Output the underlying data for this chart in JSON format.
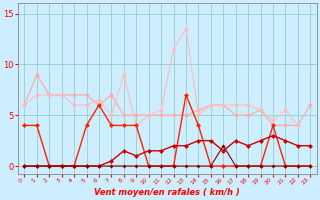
{
  "xlabel": "Vent moyen/en rafales ( km/h )",
  "background_color": "#cceeff",
  "grid_color": "#99cccc",
  "x_ticks": [
    0,
    1,
    2,
    3,
    4,
    5,
    6,
    7,
    8,
    9,
    10,
    11,
    12,
    13,
    14,
    15,
    16,
    17,
    18,
    19,
    20,
    21,
    22,
    23
  ],
  "y_ticks": [
    0,
    5,
    10,
    15
  ],
  "ylim": [
    -0.8,
    16.0
  ],
  "xlim": [
    -0.5,
    23.5
  ],
  "series": [
    {
      "x": [
        0,
        1,
        2,
        3,
        4,
        5,
        6,
        7,
        8,
        9,
        10,
        11,
        12,
        13,
        14,
        15,
        16,
        17,
        18,
        19,
        20,
        21,
        22,
        23
      ],
      "y": [
        6.0,
        9.0,
        7.0,
        7.0,
        7.0,
        7.0,
        6.0,
        7.0,
        5.0,
        5.0,
        5.0,
        5.0,
        5.0,
        5.0,
        5.5,
        6.0,
        6.0,
        5.0,
        5.0,
        5.5,
        4.0,
        4.0,
        4.0,
        6.0
      ],
      "color": "#ffaaaa",
      "linewidth": 0.9,
      "markersize": 2.5
    },
    {
      "x": [
        0,
        1,
        2,
        3,
        4,
        5,
        6,
        7,
        8,
        9,
        10,
        11,
        12,
        13,
        14,
        15,
        16,
        17,
        18,
        19,
        20,
        21,
        22,
        23
      ],
      "y": [
        6.0,
        7.0,
        7.0,
        7.0,
        6.0,
        6.0,
        6.5,
        5.0,
        9.0,
        4.0,
        5.0,
        5.5,
        11.5,
        13.5,
        5.0,
        6.0,
        6.0,
        6.0,
        6.0,
        5.5,
        4.5,
        5.5,
        4.0,
        null
      ],
      "color": "#ffbbbb",
      "linewidth": 0.8,
      "markersize": 2.5
    },
    {
      "x": [
        0,
        1,
        2,
        3,
        4,
        5,
        6,
        7,
        8,
        9,
        10,
        11,
        12,
        13,
        14,
        15,
        16,
        17,
        18,
        19,
        20,
        21,
        22,
        23
      ],
      "y": [
        4.0,
        4.0,
        0.0,
        0.0,
        0.0,
        4.0,
        6.0,
        4.0,
        4.0,
        4.0,
        0.0,
        0.0,
        0.0,
        7.0,
        4.0,
        0.0,
        0.0,
        0.0,
        0.0,
        0.0,
        4.0,
        0.0,
        0.0,
        0.0
      ],
      "color": "#ff2200",
      "linewidth": 1.0,
      "markersize": 2.5
    },
    {
      "x": [
        0,
        1,
        2,
        3,
        4,
        5,
        6,
        7,
        8,
        9,
        10,
        11,
        12,
        13,
        14,
        15,
        16,
        17,
        18,
        19,
        20,
        21,
        22,
        23
      ],
      "y": [
        0.0,
        0.0,
        0.0,
        0.0,
        0.0,
        0.0,
        0.0,
        0.5,
        1.5,
        1.0,
        1.5,
        1.5,
        2.0,
        2.0,
        2.5,
        2.5,
        1.5,
        2.5,
        2.0,
        2.5,
        3.0,
        2.5,
        2.0,
        2.0
      ],
      "color": "#cc0000",
      "linewidth": 1.0,
      "markersize": 2.5
    },
    {
      "x": [
        0,
        1,
        2,
        3,
        4,
        5,
        6,
        7,
        8,
        9,
        10,
        11,
        12,
        13,
        14,
        15,
        16,
        17,
        18,
        19,
        20,
        21,
        22,
        23
      ],
      "y": [
        0.0,
        0.0,
        0.0,
        0.0,
        0.0,
        0.0,
        0.0,
        0.0,
        0.0,
        0.0,
        0.0,
        0.0,
        0.0,
        0.0,
        0.0,
        0.0,
        2.0,
        0.0,
        0.0,
        0.0,
        0.0,
        0.0,
        0.0,
        0.0
      ],
      "color": "#880000",
      "linewidth": 0.8,
      "markersize": 2.0
    }
  ]
}
